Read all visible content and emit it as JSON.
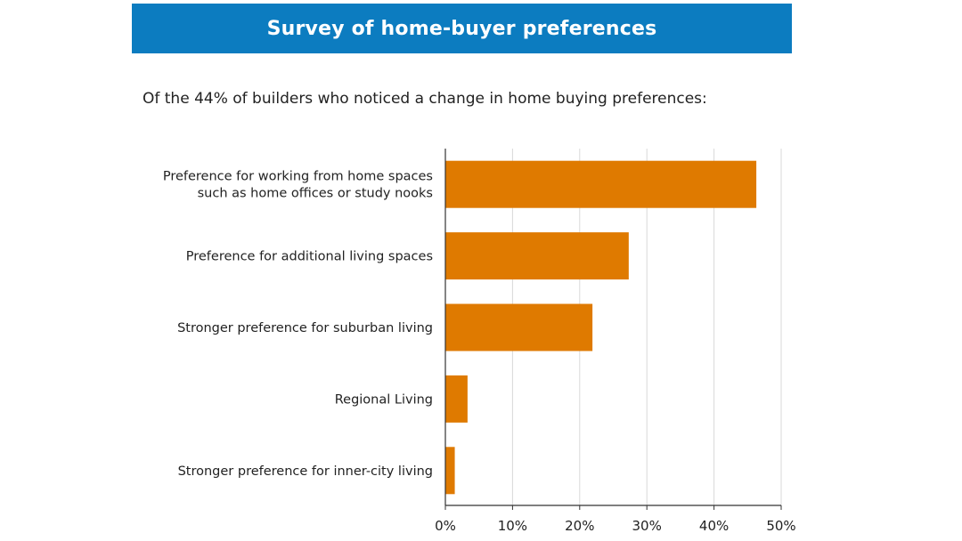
{
  "header": {
    "title": "Survey of home-buyer preferences"
  },
  "subtitle": "Of the 44% of builders who noticed a change in home buying preferences:",
  "colors": {
    "header_bg": "#0c7cc0",
    "bar": "#df7a00",
    "axis": "#333333",
    "grid": "#d9d9d9"
  },
  "chart_data": {
    "type": "bar",
    "orientation": "horizontal",
    "categories": [
      [
        "Preference for working from home spaces",
        "such as home offices or study nooks"
      ],
      [
        "Preference for additional living spaces"
      ],
      [
        "Stronger preference for suburban living"
      ],
      [
        "Regional Living"
      ],
      [
        "Stronger preference for inner-city living"
      ]
    ],
    "values": [
      46.3,
      27.3,
      21.9,
      3.3,
      1.4
    ],
    "xlim": [
      0,
      50
    ],
    "xticks": [
      0,
      10,
      20,
      30,
      40,
      50
    ],
    "xtick_labels": [
      "0%",
      "10%",
      "20%",
      "30%",
      "40%",
      "50%"
    ],
    "grid": "vertical",
    "xlabel": "",
    "ylabel": ""
  }
}
